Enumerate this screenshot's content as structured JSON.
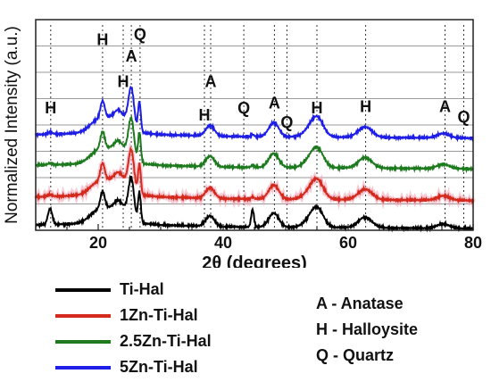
{
  "chart_data": {
    "type": "line",
    "xlabel": "2θ (degrees)",
    "ylabel": "Normalized Intensity (a.u.)",
    "xlim": [
      10,
      80
    ],
    "ylim": [
      0,
      2.4
    ],
    "xticks": [
      20,
      40,
      60,
      80
    ],
    "grid": "horizontal",
    "peak_labels": [
      {
        "label": "H",
        "x": 12.4,
        "y": 1.33
      },
      {
        "label": "H",
        "x": 20.7,
        "y": 2.11
      },
      {
        "label": "Q",
        "x": 26.7,
        "y": 2.17
      },
      {
        "label": "A",
        "x": 25.3,
        "y": 1.92
      },
      {
        "label": "H",
        "x": 24.0,
        "y": 1.63
      },
      {
        "label": "A",
        "x": 38.0,
        "y": 1.63
      },
      {
        "label": "H",
        "x": 37.0,
        "y": 1.25
      },
      {
        "label": "Q",
        "x": 43.3,
        "y": 1.33
      },
      {
        "label": "A",
        "x": 48.2,
        "y": 1.39
      },
      {
        "label": "Q",
        "x": 50.2,
        "y": 1.17
      },
      {
        "label": "H",
        "x": 55.0,
        "y": 1.33
      },
      {
        "label": "H",
        "x": 62.8,
        "y": 1.35
      },
      {
        "label": "A",
        "x": 75.5,
        "y": 1.35
      },
      {
        "label": "Q",
        "x": 78.5,
        "y": 1.23
      }
    ],
    "marker_lines_x": [
      12.4,
      20.7,
      24.0,
      25.3,
      26.7,
      37.0,
      38.0,
      43.3,
      48.2,
      50.2,
      55.0,
      62.8,
      75.5,
      78.5
    ],
    "series": [
      {
        "name": "Ti-Hal",
        "color": "#000000",
        "offset": 0.0
      },
      {
        "name": "1Zn-Ti-Hal",
        "color": "#d42a1e",
        "offset": 0.32
      },
      {
        "name": "2.5Zn-Ti-Hal",
        "color": "#1e7a1e",
        "offset": 0.68
      },
      {
        "name": "5Zn-Ti-Hal",
        "color": "#1e1ee6",
        "offset": 1.03
      }
    ],
    "pattern_peaks": [
      {
        "x": 12.3,
        "h": 0.18,
        "w": 0.35
      },
      {
        "x": 20.1,
        "h": 0.15,
        "w": 1.4
      },
      {
        "x": 20.7,
        "h": 0.2,
        "w": 0.35
      },
      {
        "x": 22.1,
        "h": 0.1,
        "w": 0.8
      },
      {
        "x": 23.2,
        "h": 0.17,
        "w": 0.6
      },
      {
        "x": 24.3,
        "h": 0.12,
        "w": 0.6
      },
      {
        "x": 25.3,
        "h": 0.48,
        "w": 0.45
      },
      {
        "x": 26.6,
        "h": 0.35,
        "w": 0.22
      },
      {
        "x": 37.9,
        "h": 0.12,
        "w": 0.7
      },
      {
        "x": 44.7,
        "h": 0.2,
        "w": 0.22
      },
      {
        "x": 48.1,
        "h": 0.16,
        "w": 0.8
      },
      {
        "x": 54.5,
        "h": 0.14,
        "w": 1.2
      },
      {
        "x": 55.2,
        "h": 0.11,
        "w": 0.9
      },
      {
        "x": 62.7,
        "h": 0.12,
        "w": 1.1
      },
      {
        "x": 75.2,
        "h": 0.05,
        "w": 1.0
      }
    ],
    "baseline": [
      {
        "x": 10,
        "y": 0.06
      },
      {
        "x": 19,
        "y": 0.08
      },
      {
        "x": 24,
        "y": 0.1
      },
      {
        "x": 30,
        "y": 0.06
      },
      {
        "x": 40,
        "y": 0.04
      },
      {
        "x": 60,
        "y": 0.03
      },
      {
        "x": 80,
        "y": 0.02
      }
    ]
  },
  "legend": {
    "items": [
      {
        "label": "Ti-Hal",
        "color": "#000000"
      },
      {
        "label": "1Zn-Ti-Hal",
        "color": "#d42a1e"
      },
      {
        "label": "2.5Zn-Ti-Hal",
        "color": "#1e7a1e"
      },
      {
        "label": "5Zn-Ti-Hal",
        "color": "#1e1ee6"
      }
    ]
  },
  "phase_key": {
    "items": [
      "A - Anatase",
      "H - Halloysite",
      "Q - Quartz"
    ]
  }
}
